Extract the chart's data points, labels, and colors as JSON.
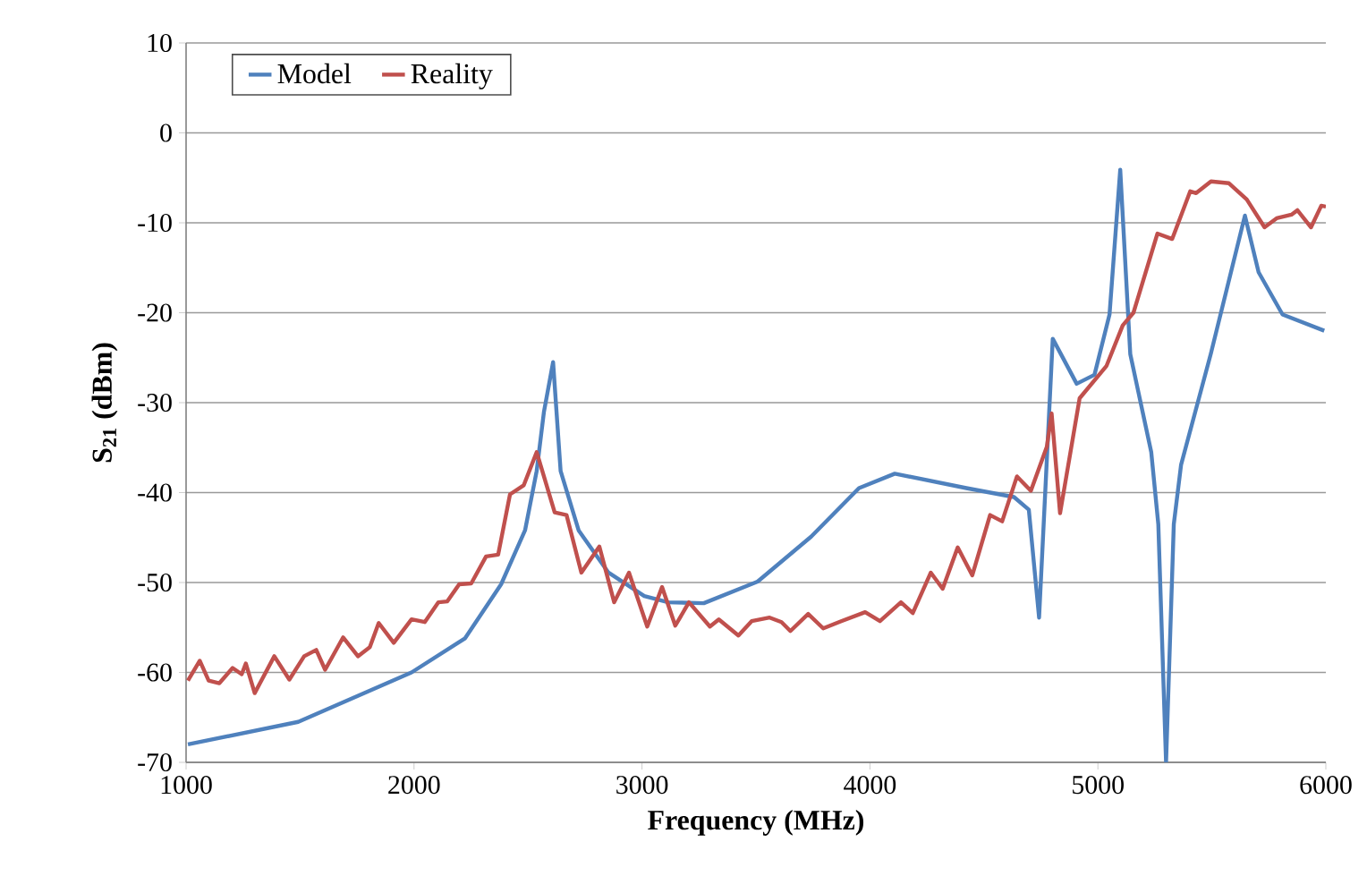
{
  "chart_data": {
    "type": "line",
    "xlabel": "Frequency (MHz)",
    "ylabel": "S$_{21}$ (dBm)",
    "xlim": [
      1000,
      6000
    ],
    "ylim": [
      -70,
      10
    ],
    "xticks": [
      1000,
      2000,
      3000,
      4000,
      5000,
      6000
    ],
    "yticks": [
      -70,
      -60,
      -50,
      -40,
      -30,
      -20,
      -10,
      0,
      10
    ],
    "grid": "y",
    "legend": "top left",
    "line_style": "solid",
    "marker": "none",
    "series": [
      {
        "name": "Model",
        "color": "#4f81bd",
        "x": [
          1008,
          1492,
          1989,
          2224,
          2382,
          2487,
          2538,
          2570,
          2610,
          2643,
          2722,
          2853,
          3010,
          3115,
          3271,
          3507,
          3742,
          3952,
          4109,
          4423,
          4632,
          4697,
          4742,
          4802,
          4907,
          4985,
          5051,
          5098,
          5142,
          5234,
          5265,
          5299,
          5333,
          5365,
          5495,
          5645,
          5705,
          5810,
          5993
        ],
        "values": [
          -68,
          -65.5,
          -60,
          -56.2,
          -50.2,
          -44.2,
          -37.6,
          -31,
          -25.5,
          -37.6,
          -44.2,
          -48.9,
          -51.5,
          -52.2,
          -52.3,
          -49.9,
          -44.9,
          -39.5,
          -37.9,
          -39.5,
          -40.5,
          -41.9,
          -53.9,
          -22.9,
          -27.9,
          -26.9,
          -20.2,
          -4.1,
          -24.6,
          -35.5,
          -43.5,
          -70,
          -43.5,
          -36.9,
          -24.6,
          -9.2,
          -15.5,
          -20.2,
          -22
        ]
      },
      {
        "name": "Reality",
        "color": "#c0504d",
        "x": [
          1008,
          1060,
          1099,
          1146,
          1204,
          1244,
          1262,
          1301,
          1387,
          1453,
          1518,
          1571,
          1610,
          1689,
          1754,
          1806,
          1845,
          1911,
          1989,
          2047,
          2107,
          2146,
          2198,
          2251,
          2316,
          2369,
          2421,
          2481,
          2538,
          2617,
          2669,
          2734,
          2813,
          2878,
          2943,
          3023,
          3088,
          3146,
          3206,
          3298,
          3337,
          3423,
          3481,
          3560,
          3612,
          3651,
          3729,
          3795,
          3874,
          3979,
          4044,
          4136,
          4188,
          4267,
          4319,
          4385,
          4449,
          4527,
          4580,
          4645,
          4706,
          4776,
          4797,
          4834,
          4920,
          5038,
          5109,
          5156,
          5261,
          5326,
          5405,
          5431,
          5496,
          5575,
          5653,
          5731,
          5784,
          5849,
          5875,
          5935,
          5980,
          6000
        ],
        "values": [
          -60.9,
          -58.7,
          -60.9,
          -61.2,
          -59.5,
          -60.2,
          -59,
          -62.3,
          -58.2,
          -60.8,
          -58.2,
          -57.5,
          -59.7,
          -56.1,
          -58.2,
          -57.2,
          -54.5,
          -56.7,
          -54.1,
          -54.4,
          -52.2,
          -52.1,
          -50.2,
          -50.1,
          -47.1,
          -46.9,
          -40.2,
          -39.2,
          -35.5,
          -42.2,
          -42.5,
          -48.9,
          -46,
          -52.2,
          -48.9,
          -54.9,
          -50.5,
          -54.8,
          -52.2,
          -54.9,
          -54.1,
          -55.9,
          -54.3,
          -53.9,
          -54.4,
          -55.4,
          -53.5,
          -55.1,
          -54.3,
          -53.3,
          -54.3,
          -52.2,
          -53.4,
          -48.9,
          -50.7,
          -46.1,
          -49.2,
          -42.5,
          -43.2,
          -38.2,
          -39.8,
          -34.9,
          -31.2,
          -42.3,
          -29.5,
          -25.9,
          -21.4,
          -20,
          -11.2,
          -11.8,
          -6.5,
          -6.7,
          -5.4,
          -5.6,
          -7.4,
          -10.5,
          -9.5,
          -9.1,
          -8.6,
          -10.5,
          -8.1,
          -8.2
        ]
      }
    ]
  }
}
